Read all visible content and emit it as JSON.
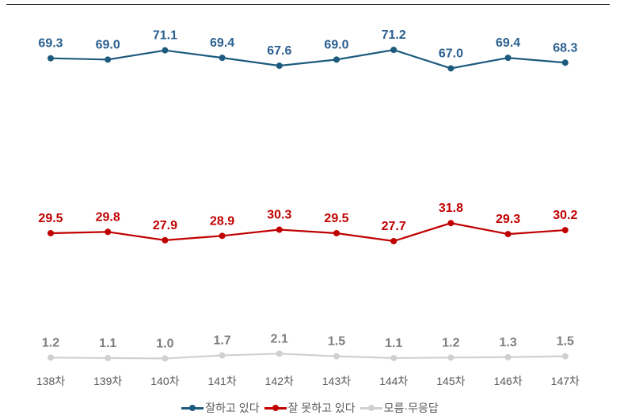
{
  "chart_data": {
    "type": "line",
    "categories": [
      "138차",
      "139차",
      "140차",
      "141차",
      "142차",
      "143차",
      "144차",
      "145차",
      "146차",
      "147차"
    ],
    "series": [
      {
        "name": "잘하고 있다",
        "color": "#1d5b7e",
        "label_color": "#2a5f8f",
        "values": [
          69.3,
          69.0,
          71.1,
          69.4,
          67.6,
          69.0,
          71.2,
          67.0,
          69.4,
          68.3
        ]
      },
      {
        "name": "잘 못하고 있다",
        "color": "#c00000",
        "label_color": "#c00000",
        "values": [
          29.5,
          29.8,
          27.9,
          28.9,
          30.3,
          29.5,
          27.7,
          31.8,
          29.3,
          30.2
        ]
      },
      {
        "name": "모름·무응답",
        "color": "#d0d0d0",
        "label_color": "#7f7f7f",
        "values": [
          1.2,
          1.1,
          1.0,
          1.7,
          2.1,
          1.5,
          1.1,
          1.2,
          1.3,
          1.5
        ]
      }
    ],
    "ylim": [
      0,
      80
    ],
    "grid": false,
    "legend": "bottom"
  }
}
